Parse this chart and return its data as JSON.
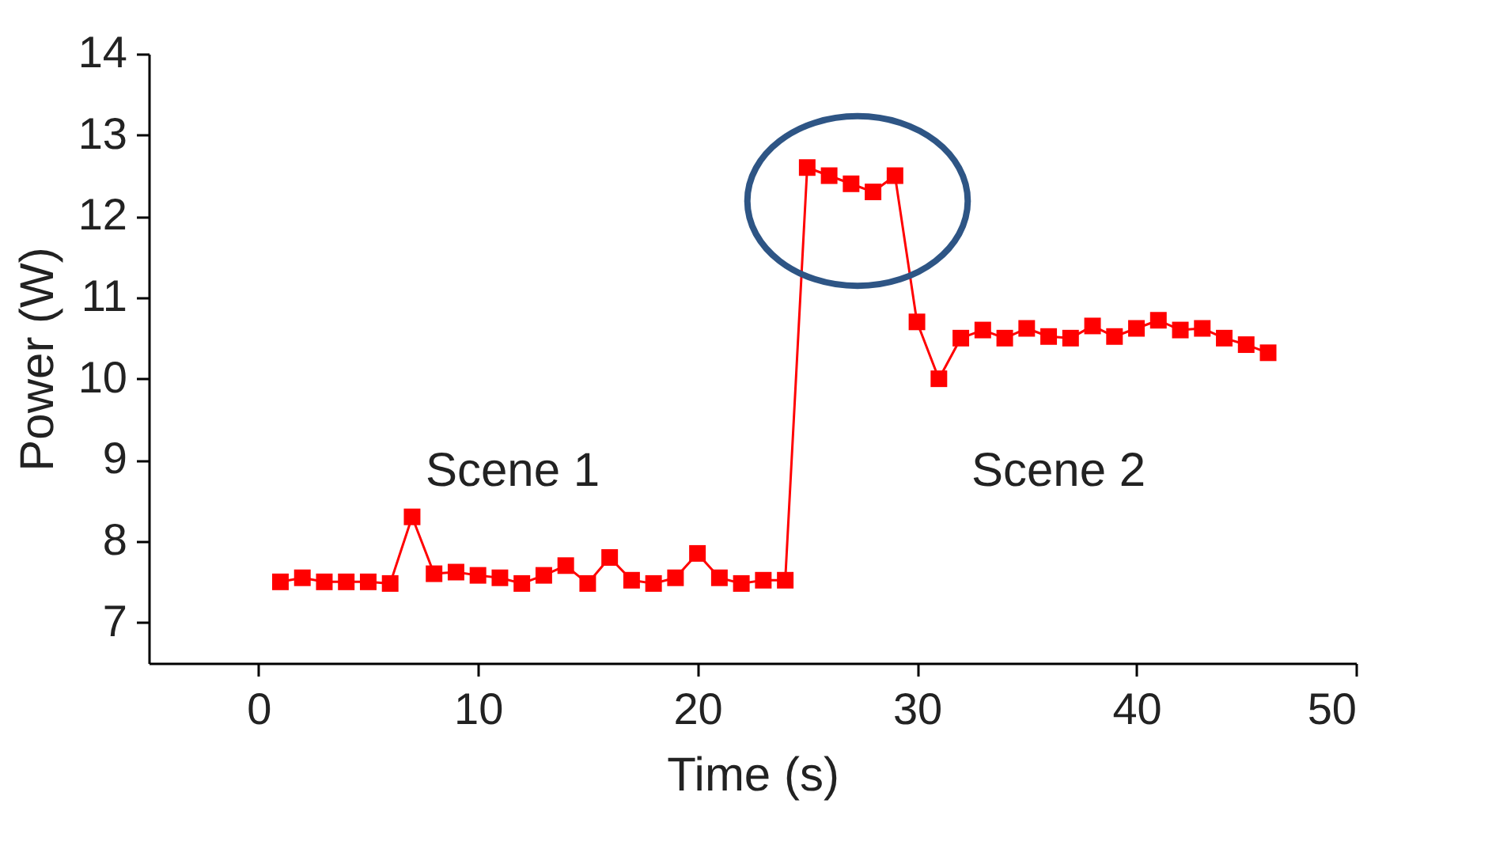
{
  "chart_data": {
    "type": "line",
    "xlabel": "Time (s)",
    "ylabel": "Power (W)",
    "x": [
      1,
      2,
      3,
      4,
      5,
      6,
      7,
      8,
      9,
      10,
      11,
      12,
      13,
      14,
      15,
      16,
      17,
      18,
      19,
      20,
      21,
      22,
      23,
      24,
      25,
      26,
      27,
      28,
      29,
      30,
      31,
      32,
      33,
      34,
      35,
      36,
      37,
      38,
      39,
      40,
      41,
      42,
      43,
      44,
      45,
      46
    ],
    "series": [
      {
        "color": "#ff0000",
        "values": [
          7.5,
          7.55,
          7.5,
          7.5,
          7.5,
          7.48,
          8.3,
          7.6,
          7.62,
          7.58,
          7.55,
          7.48,
          7.58,
          7.7,
          7.48,
          7.8,
          7.52,
          7.48,
          7.55,
          7.85,
          7.55,
          7.48,
          7.52,
          7.52,
          12.6,
          12.5,
          12.4,
          12.3,
          12.5,
          10.7,
          10.0,
          10.5,
          10.6,
          10.5,
          10.62,
          10.52,
          10.5,
          10.65,
          10.52,
          10.62,
          10.72,
          10.6,
          10.62,
          10.5,
          10.42,
          10.32
        ]
      }
    ],
    "xlim": [
      -5,
      50
    ],
    "xticks": [
      0,
      10,
      20,
      30,
      40,
      50
    ],
    "ylim": [
      6.5,
      14
    ],
    "yticks": [
      7,
      8,
      9,
      10,
      11,
      12,
      13,
      14
    ],
    "marker": "square",
    "line_style": "solid",
    "grid": false,
    "annotations": [
      "Scene 1",
      "Scene 2"
    ]
  }
}
